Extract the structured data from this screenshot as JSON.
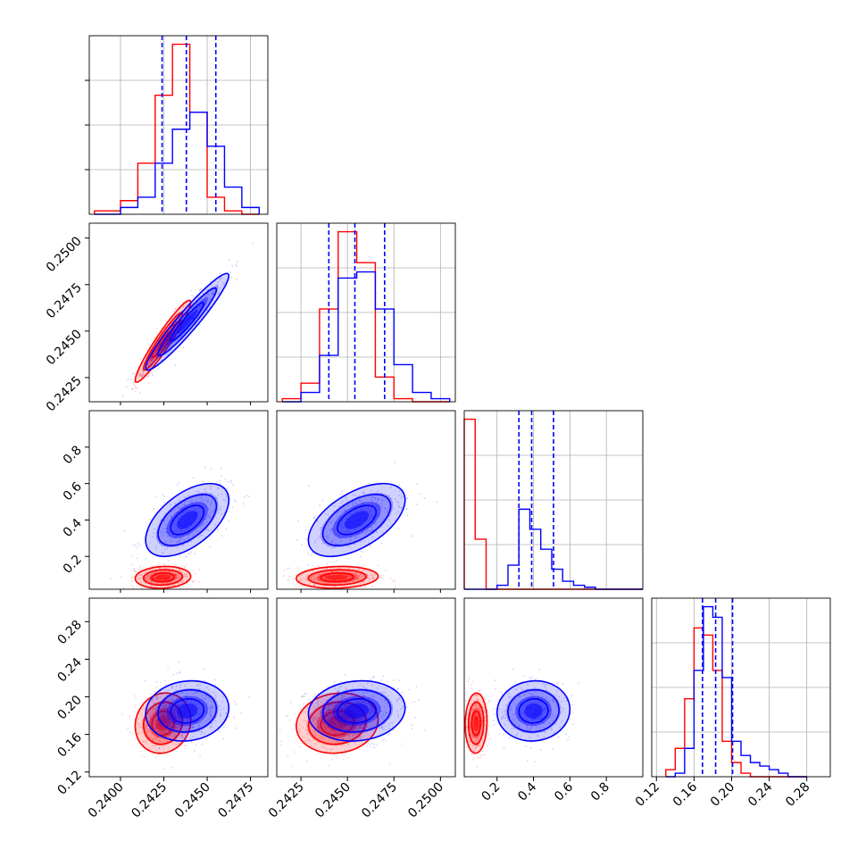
{
  "chart_data": {
    "type": "corner",
    "colors": {
      "red": "#ff0000",
      "blue": "#0000ff"
    },
    "series": [
      {
        "color": "#ff0000",
        "mean": [
          0.24245,
          0.24445,
          0.085,
          0.172
        ],
        "sd": [
          0.0008,
          0.0011,
          0.03,
          0.016
        ],
        "corr": [
          [
            1,
            0.95,
            0.1,
            0.1
          ],
          [
            0.95,
            1,
            0.1,
            0.1
          ],
          [
            0.1,
            0.1,
            1,
            0.05
          ],
          [
            0.1,
            0.1,
            0.05,
            1
          ]
        ]
      },
      {
        "color": "#0000ff",
        "mean": [
          0.24385,
          0.2455,
          0.4,
          0.185
        ],
        "sd": [
          0.0012,
          0.0013,
          0.1,
          0.016
        ],
        "corr": [
          [
            1,
            0.95,
            0.55,
            0.1
          ],
          [
            0.95,
            1,
            0.55,
            0.1
          ],
          [
            0.55,
            0.55,
            1,
            0.05
          ],
          [
            0.1,
            0.1,
            0.05,
            1
          ]
        ]
      }
    ],
    "dimensions": [
      {
        "range": [
          0.2382,
          0.2485
        ],
        "ticks": [
          0.24,
          0.2425,
          0.245,
          0.2475
        ],
        "tick_labels": [
          "0.2400",
          "0.2425",
          "0.2450",
          "0.2475"
        ],
        "quantiles": [
          0.2424,
          0.2438,
          0.2455
        ]
      },
      {
        "range": [
          0.2412,
          0.2508
        ],
        "ticks": [
          0.2425,
          0.245,
          0.2475,
          0.25
        ],
        "tick_labels": [
          "0.2425",
          "0.2450",
          "0.2475",
          "0.2500"
        ],
        "quantiles": [
          0.244,
          0.2454,
          0.247
        ]
      },
      {
        "range": [
          0.02,
          1.0
        ],
        "ticks": [
          0.2,
          0.4,
          0.6,
          0.8
        ],
        "tick_labels": [
          "0.2",
          "0.4",
          "0.6",
          "0.8"
        ],
        "quantiles": [
          0.32,
          0.39,
          0.51
        ]
      },
      {
        "range": [
          0.115,
          0.305
        ],
        "ticks": [
          0.12,
          0.16,
          0.2,
          0.24,
          0.28
        ],
        "tick_labels": [
          "0.12",
          "0.16",
          "0.20",
          "0.24",
          "0.28"
        ],
        "quantiles": [
          0.169,
          0.183,
          0.201
        ]
      }
    ],
    "histograms": [
      {
        "edges": [
          0.2385,
          0.24,
          0.241,
          0.242,
          0.243,
          0.244,
          0.245,
          0.246,
          0.247,
          0.248
        ],
        "red": [
          1,
          4,
          15,
          35,
          50,
          30,
          5,
          1,
          0
        ],
        "blue": [
          0,
          2,
          5,
          15,
          25,
          30,
          20,
          8,
          2
        ]
      },
      {
        "edges": [
          0.2415,
          0.2425,
          0.2435,
          0.2445,
          0.2455,
          0.2465,
          0.2475,
          0.2485,
          0.2495,
          0.2505
        ],
        "red": [
          1,
          6,
          30,
          55,
          45,
          8,
          1,
          0,
          0
        ],
        "blue": [
          0,
          3,
          15,
          40,
          42,
          30,
          12,
          3,
          1
        ]
      },
      {
        "edges": [
          0.02,
          0.08,
          0.14,
          0.2,
          0.26,
          0.32,
          0.38,
          0.44,
          0.5,
          0.56,
          0.62,
          0.68,
          0.74,
          0.8,
          0.86,
          0.92,
          1.0
        ],
        "red": [
          85,
          25,
          0,
          0,
          0,
          0,
          0,
          0,
          0,
          0,
          0,
          0,
          0,
          0,
          0,
          0
        ],
        "blue": [
          0,
          0,
          0,
          2,
          12,
          40,
          30,
          20,
          10,
          4,
          2,
          1,
          0,
          0,
          0,
          0
        ]
      },
      {
        "edges": [
          0.13,
          0.14,
          0.15,
          0.16,
          0.17,
          0.18,
          0.19,
          0.2,
          0.21,
          0.22,
          0.23,
          0.24,
          0.25,
          0.26,
          0.27,
          0.28
        ],
        "red": [
          2,
          8,
          22,
          42,
          40,
          30,
          10,
          4,
          1,
          0,
          0,
          0,
          0,
          0,
          0
        ],
        "blue": [
          0,
          1,
          8,
          30,
          48,
          45,
          28,
          10,
          6,
          4,
          3,
          2,
          1,
          0,
          0
        ]
      }
    ],
    "title": "",
    "xlabel": "",
    "ylabel": "",
    "grid": true,
    "quantile_style": "dashed-blue"
  }
}
